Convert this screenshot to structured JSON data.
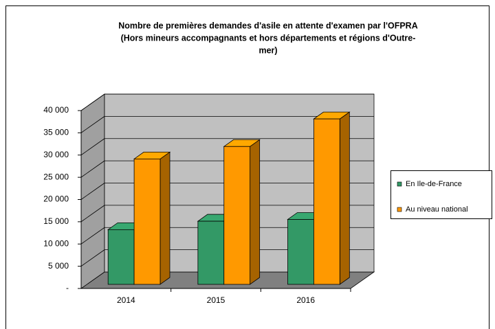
{
  "chart_data": {
    "type": "bar3d",
    "title": "Nombre de premières demandes d'asile en attente d'examen par l'OFPRA",
    "subtitle": [
      "(Hors mineurs accompagnants et hors départements et régions d'Outre-",
      "mer)"
    ],
    "categories": [
      "2014",
      "2015",
      "2016"
    ],
    "series": [
      {
        "name": "En Ile-de-France",
        "color": "#339966",
        "values": [
          12300,
          14200,
          14600
        ]
      },
      {
        "name": "Au niveau national",
        "color": "#ff9900",
        "values": [
          28200,
          31000,
          37200
        ]
      }
    ],
    "ylim": [
      0,
      40000
    ],
    "yticks": [
      {
        "value": 0,
        "label": "-"
      },
      {
        "value": 5000,
        "label": "5 000"
      },
      {
        "value": 10000,
        "label": "10 000"
      },
      {
        "value": 15000,
        "label": "15 000"
      },
      {
        "value": 20000,
        "label": "20 000"
      },
      {
        "value": 25000,
        "label": "25 000"
      },
      {
        "value": 30000,
        "label": "30 000"
      },
      {
        "value": 35000,
        "label": "35 000"
      },
      {
        "value": 40000,
        "label": "40 000"
      }
    ],
    "grid": true,
    "legend": "right"
  }
}
